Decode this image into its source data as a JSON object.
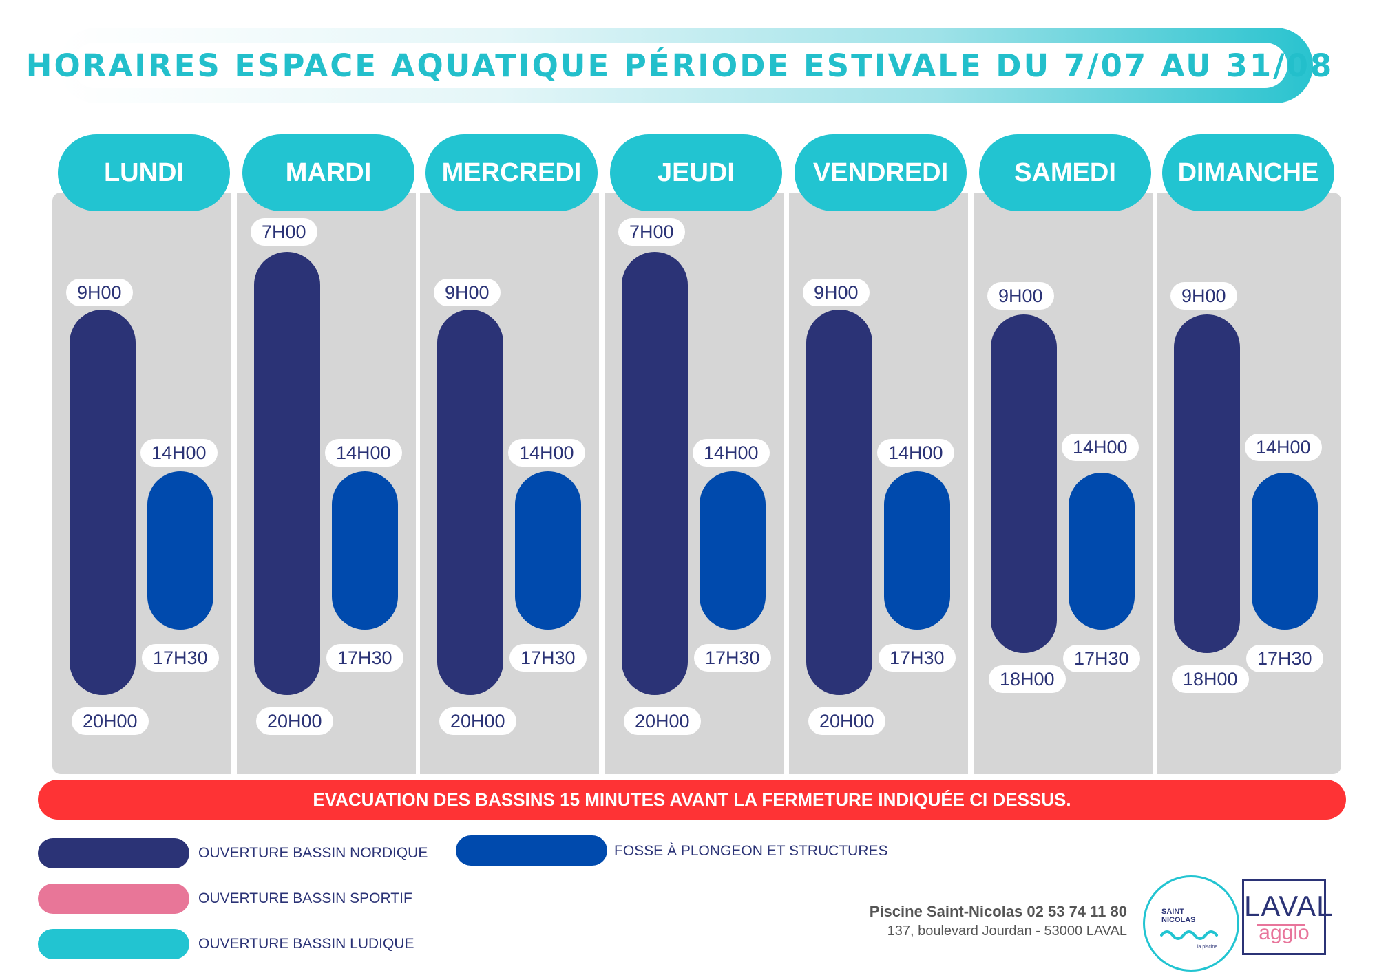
{
  "header": {
    "title": "HORAIRES ESPACE AQUATIQUE PÉRIODE ESTIVALE DU 7/07 AU 31/08"
  },
  "days": [
    {
      "name": "LUNDI",
      "nordique_open": "9H00",
      "nordique_close": "20H00",
      "fosse_open": "14H00",
      "fosse_close": "17H30"
    },
    {
      "name": "MARDI",
      "nordique_open": "7H00",
      "nordique_close": "20H00",
      "fosse_open": "14H00",
      "fosse_close": "17H30"
    },
    {
      "name": "MERCREDI",
      "nordique_open": "9H00",
      "nordique_close": "20H00",
      "fosse_open": "14H00",
      "fosse_close": "17H30"
    },
    {
      "name": "JEUDI",
      "nordique_open": "7H00",
      "nordique_close": "20H00",
      "fosse_open": "14H00",
      "fosse_close": "17H30"
    },
    {
      "name": "VENDREDI",
      "nordique_open": "9H00",
      "nordique_close": "20H00",
      "fosse_open": "14H00",
      "fosse_close": "17H30"
    },
    {
      "name": "SAMEDI",
      "nordique_open": "9H00",
      "nordique_close": "18H00",
      "fosse_open": "14H00",
      "fosse_close": "17H30"
    },
    {
      "name": "DIMANCHE",
      "nordique_open": "9H00",
      "nordique_close": "18H00",
      "fosse_open": "14H00",
      "fosse_close": "17H30"
    }
  ],
  "warning": {
    "text": "EVACUATION DES BASSINS  15 MINUTES AVANT LA FERMETURE INDIQUÉE CI DESSUS."
  },
  "legend": {
    "nordique": {
      "label": "OUVERTURE BASSIN NORDIQUE",
      "color": "#2b3376"
    },
    "sportif": {
      "label": "OUVERTURE BASSIN SPORTIF",
      "color": "#e87698"
    },
    "ludique": {
      "label": "OUVERTURE BASSIN LUDIQUE",
      "color": "#22c4d1"
    },
    "fosse": {
      "label": "FOSSE À PLONGEON ET STRUCTURES",
      "color": "#004aad"
    }
  },
  "footer": {
    "name": "Piscine Saint-Nicolas 02 53 74 11 80",
    "address": "137, boulevard Jourdan - 53000 LAVAL"
  },
  "logos": {
    "saint_nicolas": {
      "text": "SAINT\nNICOLAS",
      "sub": "la piscine"
    },
    "laval": {
      "top": "LAVAL",
      "bottom": "agglo"
    }
  }
}
